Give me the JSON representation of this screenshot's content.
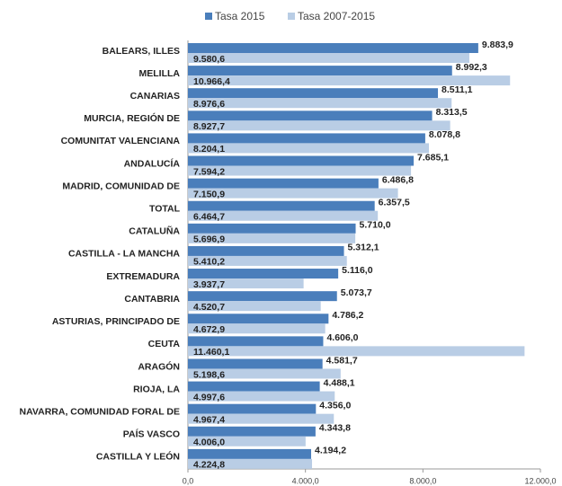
{
  "chart_data": {
    "type": "barh",
    "categories": [
      "BALEARS, ILLES",
      "MELILLA",
      "CANARIAS",
      "MURCIA, REGIÓN DE",
      "COMUNITAT VALENCIANA",
      "ANDALUCÍA",
      "MADRID, COMUNIDAD DE",
      "TOTAL",
      "CATALUÑA",
      "CASTILLA - LA MANCHA",
      "EXTREMADURA",
      "CANTABRIA",
      "ASTURIAS, PRINCIPADO DE",
      "CEUTA",
      "ARAGÓN",
      "RIOJA, LA",
      "NAVARRA, COMUNIDAD FORAL DE",
      "PAÍS VASCO",
      "CASTILLA Y LEÓN"
    ],
    "series": [
      {
        "name": "Tasa 2015",
        "color": "#4a7ebb",
        "values": [
          9883.9,
          8992.3,
          8511.1,
          8313.5,
          8078.8,
          7685.1,
          6486.8,
          6357.5,
          5710.0,
          5312.1,
          5116.0,
          5073.7,
          4786.2,
          4606.0,
          4581.7,
          4488.1,
          4356.0,
          4343.8,
          4194.2
        ],
        "value_labels": [
          "9.883,9",
          "8.992,3",
          "8.511,1",
          "8.313,5",
          "8.078,8",
          "7.685,1",
          "6.486,8",
          "6.357,5",
          "5.710,0",
          "5.312,1",
          "5.116,0",
          "5.073,7",
          "4.786,2",
          "4.606,0",
          "4.581,7",
          "4.488,1",
          "4.356,0",
          "4.343,8",
          "4.194,2"
        ]
      },
      {
        "name": "Tasa 2007-2015",
        "color": "#b9cde5",
        "values": [
          9580.6,
          10966.4,
          8976.6,
          8927.7,
          8204.1,
          7594.2,
          7150.9,
          6464.7,
          5696.9,
          5410.2,
          3937.7,
          4520.7,
          4672.9,
          11460.1,
          5198.6,
          4997.6,
          4967.4,
          4006.0,
          4224.8
        ],
        "value_labels": [
          "9.580,6",
          "10.966,4",
          "8.976,6",
          "8.927,7",
          "8.204,1",
          "7.594,2",
          "7.150,9",
          "6.464,7",
          "5.696,9",
          "5.410,2",
          "3.937,7",
          "4.520,7",
          "4.672,9",
          "11.460,1",
          "5.198,6",
          "4.997,6",
          "4.967,4",
          "4.006,0",
          "4.224,8"
        ]
      }
    ],
    "xlim": [
      0,
      12000
    ],
    "xticks": [
      {
        "value": 0,
        "label": "0,0"
      },
      {
        "value": 4000,
        "label": "4.000,0"
      },
      {
        "value": 8000,
        "label": "8.000,0"
      },
      {
        "value": 12000,
        "label": "12.000,0"
      }
    ],
    "legend": "top",
    "grid": false
  }
}
